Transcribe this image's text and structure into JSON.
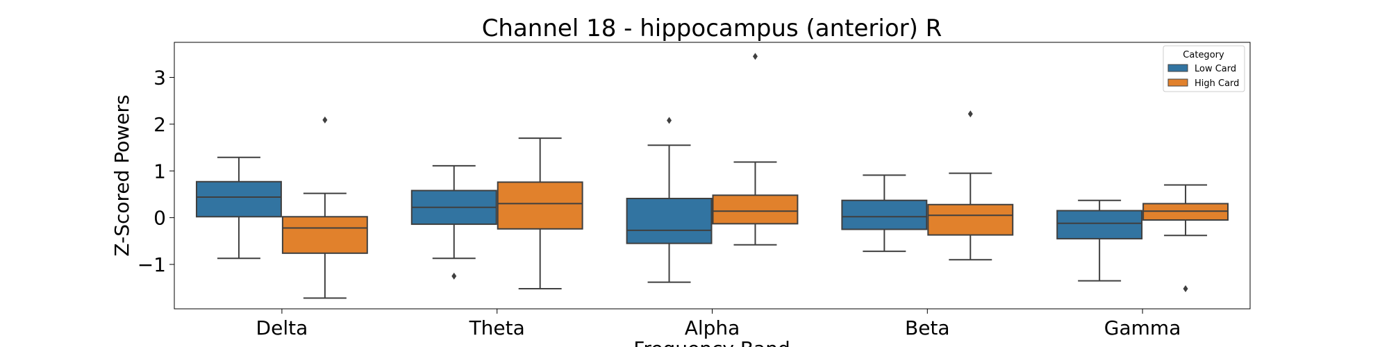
{
  "chart_data": {
    "type": "box",
    "title": "Channel 18 - hippocampus (anterior) R",
    "xlabel": "Frequency Band",
    "ylabel": "Z-Scored Powers",
    "categories": [
      "Delta",
      "Theta",
      "Alpha",
      "Beta",
      "Gamma"
    ],
    "ylim": [
      -1.95,
      3.75
    ],
    "yticks": [
      -1,
      0,
      1,
      2,
      3
    ],
    "ytick_labels": [
      "−1",
      "0",
      "1",
      "2",
      "3"
    ],
    "grid": false,
    "legend": {
      "title": "Category",
      "position": "top-right"
    },
    "series": [
      {
        "name": "Low Card",
        "color": "#3274a1",
        "boxes": [
          {
            "whisker_low": -0.87,
            "q1": 0.02,
            "median": 0.44,
            "q3": 0.77,
            "whisker_high": 1.29,
            "outliers": []
          },
          {
            "whisker_low": -0.87,
            "q1": -0.14,
            "median": 0.22,
            "q3": 0.58,
            "whisker_high": 1.11,
            "outliers": [
              -1.25
            ]
          },
          {
            "whisker_low": -1.38,
            "q1": -0.55,
            "median": -0.27,
            "q3": 0.41,
            "whisker_high": 1.55,
            "outliers": [
              2.08
            ]
          },
          {
            "whisker_low": -0.72,
            "q1": -0.25,
            "median": 0.02,
            "q3": 0.37,
            "whisker_high": 0.91,
            "outliers": []
          },
          {
            "whisker_low": -1.35,
            "q1": -0.45,
            "median": -0.12,
            "q3": 0.15,
            "whisker_high": 0.37,
            "outliers": []
          }
        ]
      },
      {
        "name": "High Card",
        "color": "#e1812c",
        "boxes": [
          {
            "whisker_low": -1.72,
            "q1": -0.76,
            "median": -0.22,
            "q3": 0.02,
            "whisker_high": 0.52,
            "outliers": [
              2.09
            ]
          },
          {
            "whisker_low": -1.52,
            "q1": -0.24,
            "median": 0.3,
            "q3": 0.76,
            "whisker_high": 1.7,
            "outliers": []
          },
          {
            "whisker_low": -0.58,
            "q1": -0.13,
            "median": 0.14,
            "q3": 0.48,
            "whisker_high": 1.19,
            "outliers": [
              3.45
            ]
          },
          {
            "whisker_low": -0.9,
            "q1": -0.37,
            "median": 0.05,
            "q3": 0.28,
            "whisker_high": 0.95,
            "outliers": [
              2.22
            ]
          },
          {
            "whisker_low": -0.38,
            "q1": -0.05,
            "median": 0.14,
            "q3": 0.3,
            "whisker_high": 0.7,
            "outliers": [
              -1.52
            ]
          }
        ]
      }
    ]
  }
}
